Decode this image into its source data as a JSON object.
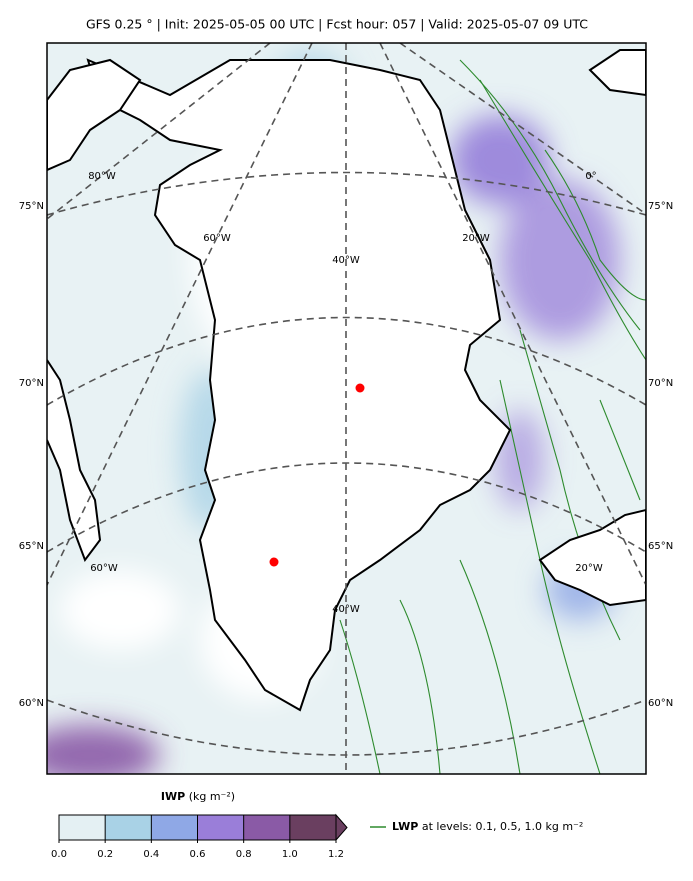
{
  "title": "GFS 0.25 °  |  Init: 2025-05-05 00 UTC  |  Fcst hour: 057  |  Valid: 2025-05-07 09 UTC",
  "lat_labels_left": [
    "75°N",
    "70°N",
    "65°N",
    "60°N"
  ],
  "lat_labels_right": [
    "75°N",
    "70°N",
    "65°N",
    "60°N"
  ],
  "lon_labels": [
    "80°W",
    "60°W",
    "40°W",
    "20°W",
    "0°",
    "60°W",
    "40°W",
    "20°W"
  ],
  "colorbar": {
    "name": "IWP",
    "units": "(kg m⁻²)",
    "range": [
      0,
      1.2
    ],
    "colors": [
      "#e4f0f3",
      "#a9d2e6",
      "#8fa8e6",
      "#9a7ed9",
      "#8a5aa6",
      "#6a3f60"
    ],
    "ticks": [
      {
        "value": 0,
        "label": "0.0"
      },
      0.2,
      0.4,
      0.6,
      0.8,
      {
        "value": 1,
        "label": "1.0"
      },
      1.2
    ]
  },
  "legend": {
    "name": "LWP",
    "text": "at levels: 0.1, 0.5, 1.0  kg m⁻²",
    "color": "#2e8b2e"
  }
}
